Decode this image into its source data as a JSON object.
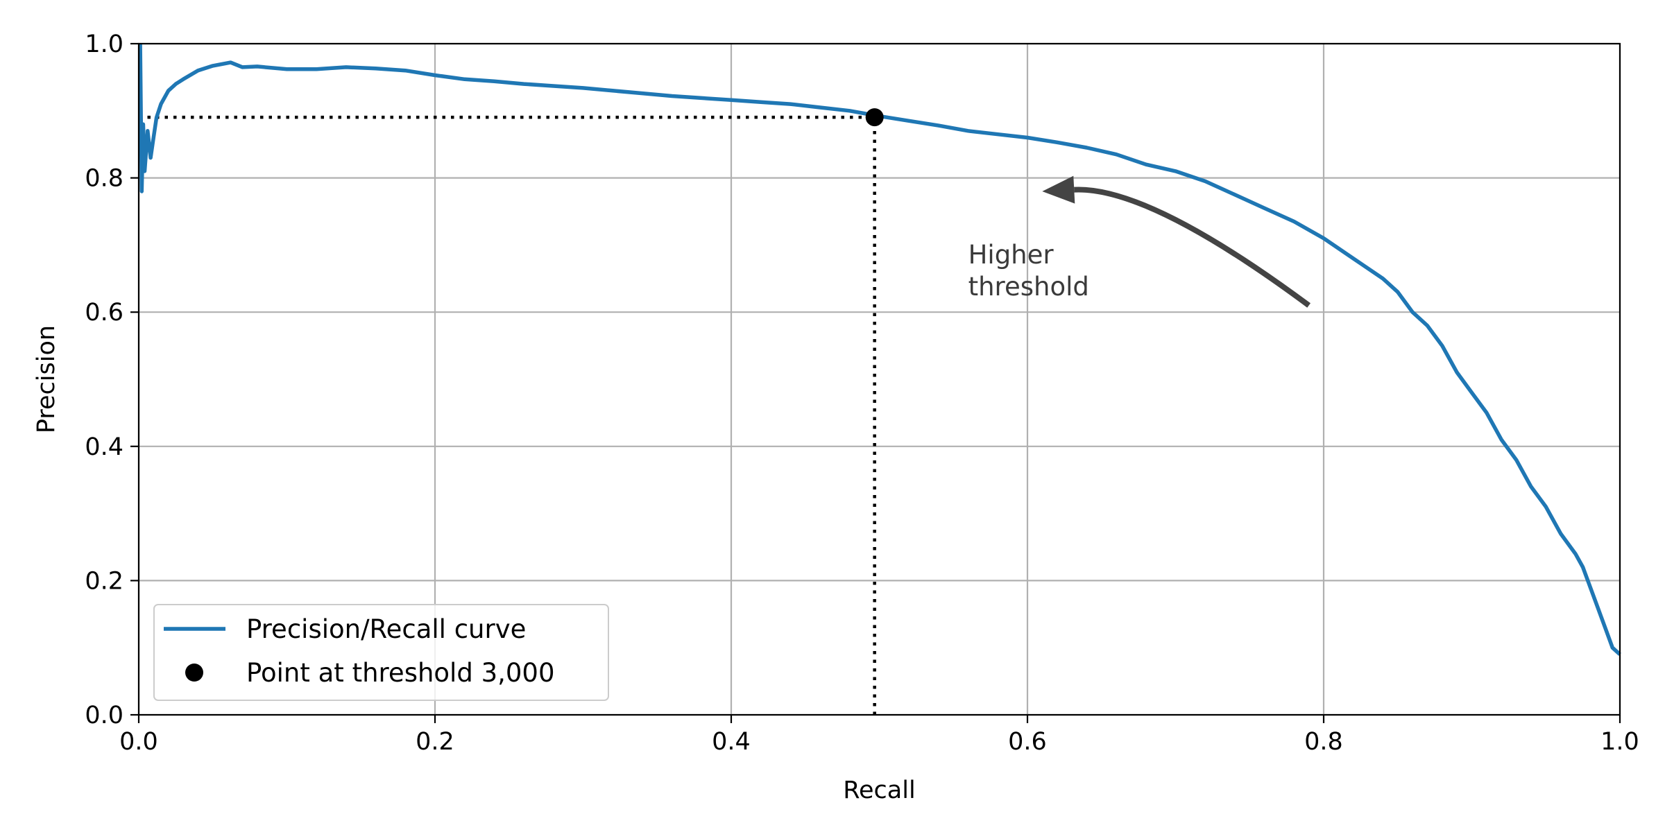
{
  "chart_data": {
    "type": "line",
    "title": "",
    "xlabel": "Recall",
    "ylabel": "Precision",
    "xlim": [
      0,
      1
    ],
    "ylim": [
      0,
      1
    ],
    "grid": true,
    "legend_position": "lower-left",
    "xticks": [
      "0.0",
      "0.2",
      "0.4",
      "0.6",
      "0.8",
      "1.0"
    ],
    "yticks": [
      "0.0",
      "0.2",
      "0.4",
      "0.6",
      "0.8",
      "1.0"
    ],
    "colors": {
      "curve": "#1f77b4",
      "point": "#000000",
      "grid": "#b0b0b0",
      "arrow": "#444444"
    },
    "series": [
      {
        "name": "Precision/Recall curve",
        "marker": "line",
        "points": [
          [
            1.0,
            0.09
          ],
          [
            0.995,
            0.1
          ],
          [
            0.99,
            0.13
          ],
          [
            0.985,
            0.16
          ],
          [
            0.98,
            0.19
          ],
          [
            0.975,
            0.22
          ],
          [
            0.97,
            0.24
          ],
          [
            0.96,
            0.27
          ],
          [
            0.95,
            0.31
          ],
          [
            0.94,
            0.34
          ],
          [
            0.93,
            0.38
          ],
          [
            0.92,
            0.41
          ],
          [
            0.91,
            0.45
          ],
          [
            0.9,
            0.48
          ],
          [
            0.89,
            0.51
          ],
          [
            0.88,
            0.55
          ],
          [
            0.87,
            0.58
          ],
          [
            0.86,
            0.6
          ],
          [
            0.85,
            0.63
          ],
          [
            0.84,
            0.65
          ],
          [
            0.82,
            0.68
          ],
          [
            0.8,
            0.71
          ],
          [
            0.78,
            0.735
          ],
          [
            0.76,
            0.755
          ],
          [
            0.74,
            0.775
          ],
          [
            0.72,
            0.795
          ],
          [
            0.7,
            0.81
          ],
          [
            0.68,
            0.82
          ],
          [
            0.66,
            0.835
          ],
          [
            0.64,
            0.845
          ],
          [
            0.62,
            0.853
          ],
          [
            0.6,
            0.86
          ],
          [
            0.58,
            0.865
          ],
          [
            0.56,
            0.87
          ],
          [
            0.54,
            0.878
          ],
          [
            0.52,
            0.885
          ],
          [
            0.5,
            0.892
          ],
          [
            0.48,
            0.9
          ],
          [
            0.46,
            0.905
          ],
          [
            0.44,
            0.91
          ],
          [
            0.42,
            0.913
          ],
          [
            0.4,
            0.916
          ],
          [
            0.38,
            0.919
          ],
          [
            0.36,
            0.922
          ],
          [
            0.34,
            0.926
          ],
          [
            0.32,
            0.93
          ],
          [
            0.3,
            0.934
          ],
          [
            0.28,
            0.937
          ],
          [
            0.26,
            0.94
          ],
          [
            0.24,
            0.944
          ],
          [
            0.22,
            0.947
          ],
          [
            0.2,
            0.953
          ],
          [
            0.18,
            0.96
          ],
          [
            0.16,
            0.963
          ],
          [
            0.14,
            0.965
          ],
          [
            0.12,
            0.962
          ],
          [
            0.1,
            0.962
          ],
          [
            0.08,
            0.966
          ],
          [
            0.07,
            0.965
          ],
          [
            0.062,
            0.972
          ],
          [
            0.05,
            0.967
          ],
          [
            0.04,
            0.96
          ],
          [
            0.03,
            0.947
          ],
          [
            0.025,
            0.94
          ],
          [
            0.02,
            0.93
          ],
          [
            0.015,
            0.91
          ],
          [
            0.012,
            0.89
          ],
          [
            0.01,
            0.86
          ],
          [
            0.008,
            0.83
          ],
          [
            0.006,
            0.87
          ],
          [
            0.004,
            0.81
          ],
          [
            0.003,
            0.88
          ],
          [
            0.002,
            0.78
          ],
          [
            0.001,
            1.0
          ]
        ]
      },
      {
        "name": "Point at threshold 3,000",
        "marker": "point",
        "points": [
          [
            0.4968,
            0.8904
          ]
        ]
      }
    ],
    "annotations": [
      {
        "type": "dotted-line",
        "from": [
          0,
          0.8904
        ],
        "to": [
          0.4968,
          0.8904
        ]
      },
      {
        "type": "dotted-line",
        "from": [
          0.4968,
          0
        ],
        "to": [
          0.4968,
          0.8904
        ]
      },
      {
        "type": "arrow",
        "from": [
          0.79,
          0.61
        ],
        "to": [
          0.61,
          0.78
        ],
        "text_lines": [
          "Higher",
          "threshold"
        ],
        "text_at": [
          0.56,
          0.65
        ]
      }
    ]
  }
}
